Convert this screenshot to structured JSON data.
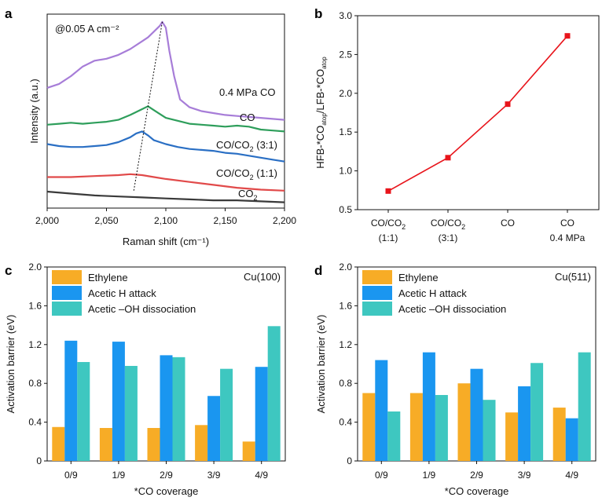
{
  "panel_letters": [
    "a",
    "b",
    "c",
    "d"
  ],
  "colors": {
    "ethylene": "#f7ac26",
    "acetic_h": "#1a96f0",
    "acetic_oh": "#3ec7c0",
    "line_b": "#e8141b",
    "purple": "#a77dd8",
    "green": "#2e9e5b",
    "blue": "#2a6fc4",
    "red": "#e14a4a",
    "dark": "#3a3a3a"
  },
  "chart_data": [
    {
      "id": "a",
      "type": "line",
      "annotation": "@0.05 A cm⁻²",
      "xlabel": "Raman shift (cm⁻¹)",
      "ylabel": "Intensity (a.u.)",
      "xlim": [
        2000,
        2200
      ],
      "xticks": [
        2000,
        2050,
        2100,
        2150,
        2200
      ],
      "xtick_labels": [
        "2,000",
        "2,050",
        "2,100",
        "2,150",
        "2,200"
      ],
      "ylim": [
        0,
        10
      ],
      "peak_guide": [
        [
          2073,
          0.9
        ],
        [
          2097,
          9.6
        ]
      ],
      "series": [
        {
          "name": "0.4 MPa CO",
          "label_parts": [
            "0.4 MPa CO"
          ],
          "color_key": "purple",
          "x": [
            2000,
            2010,
            2020,
            2030,
            2040,
            2050,
            2060,
            2070,
            2080,
            2085,
            2090,
            2095,
            2097,
            2100,
            2103,
            2107,
            2112,
            2120,
            2130,
            2140,
            2150,
            2160,
            2170,
            2180,
            2190,
            2200
          ],
          "y": [
            6.2,
            6.4,
            6.8,
            7.3,
            7.6,
            7.7,
            7.9,
            8.2,
            8.6,
            8.8,
            9.1,
            9.4,
            9.6,
            9.3,
            8.1,
            6.8,
            5.6,
            5.2,
            5.0,
            4.9,
            4.8,
            4.75,
            4.7,
            4.65,
            4.6,
            4.55
          ]
        },
        {
          "name": "CO",
          "label_parts": [
            "CO"
          ],
          "color_key": "green",
          "x": [
            2000,
            2010,
            2020,
            2030,
            2040,
            2050,
            2060,
            2070,
            2080,
            2085,
            2090,
            2095,
            2100,
            2110,
            2120,
            2130,
            2140,
            2150,
            2160,
            2170,
            2180,
            2190,
            2200
          ],
          "y": [
            4.3,
            4.35,
            4.4,
            4.35,
            4.4,
            4.45,
            4.55,
            4.8,
            5.1,
            5.25,
            5.05,
            4.85,
            4.65,
            4.5,
            4.35,
            4.3,
            4.25,
            4.2,
            4.25,
            4.2,
            4.05,
            4.0,
            3.95
          ]
        },
        {
          "name": "CO/CO₂ (3:1)",
          "label_parts": [
            "CO/CO",
            "2",
            " (3:1)"
          ],
          "color_key": "blue",
          "x": [
            2000,
            2010,
            2020,
            2030,
            2040,
            2050,
            2060,
            2070,
            2075,
            2080,
            2085,
            2090,
            2100,
            2110,
            2120,
            2130,
            2140,
            2150,
            2160,
            2170,
            2180,
            2190,
            2200
          ],
          "y": [
            3.3,
            3.2,
            3.15,
            3.15,
            3.2,
            3.25,
            3.4,
            3.65,
            3.85,
            3.95,
            3.75,
            3.5,
            3.3,
            3.15,
            3.05,
            3.0,
            2.95,
            2.85,
            2.8,
            2.7,
            2.6,
            2.5,
            2.4
          ]
        },
        {
          "name": "CO/CO₂ (1:1)",
          "label_parts": [
            "CO/CO",
            "2",
            " (1:1)"
          ],
          "color_key": "red",
          "x": [
            2000,
            2020,
            2040,
            2060,
            2070,
            2080,
            2090,
            2100,
            2120,
            2140,
            2160,
            2180,
            2200
          ],
          "y": [
            1.6,
            1.6,
            1.65,
            1.7,
            1.75,
            1.7,
            1.6,
            1.5,
            1.35,
            1.2,
            1.05,
            0.95,
            0.9
          ]
        },
        {
          "name": "CO₂",
          "label_parts": [
            "CO",
            "2",
            ""
          ],
          "color_key": "dark",
          "x": [
            2000,
            2020,
            2040,
            2060,
            2080,
            2100,
            2120,
            2140,
            2160,
            2180,
            2200
          ],
          "y": [
            0.85,
            0.75,
            0.65,
            0.6,
            0.55,
            0.5,
            0.45,
            0.4,
            0.4,
            0.35,
            0.3
          ]
        }
      ]
    },
    {
      "id": "b",
      "type": "line",
      "ylabel_parts": [
        "HFB-*CO",
        "atop",
        "/LFB-*CO",
        "atop"
      ],
      "ylabel": "HFB-*COatop/LFB-*COatop",
      "ylim": [
        0.5,
        3.0
      ],
      "yticks": [
        0.5,
        1.0,
        1.5,
        2.0,
        2.5,
        3.0
      ],
      "ytick_labels": [
        "0.5",
        "1.0",
        "1.5",
        "2.0",
        "2.5",
        "3.0"
      ],
      "categories": [
        "CO/CO2 (1:1)",
        "CO/CO2 (3:1)",
        "CO",
        "CO 0.4 MPa"
      ],
      "category_lines": [
        [
          {
            "t": "CO/CO",
            "sub": "2"
          },
          {
            "t": "(1:1)"
          }
        ],
        [
          {
            "t": "CO/CO",
            "sub": "2"
          },
          {
            "t": "(3:1)"
          }
        ],
        [
          {
            "t": "CO"
          }
        ],
        [
          {
            "t": "CO"
          },
          {
            "t": "0.4 MPa"
          }
        ]
      ],
      "values": [
        0.74,
        1.17,
        1.86,
        2.74
      ]
    },
    {
      "id": "c",
      "type": "bar",
      "title": "Cu(100)",
      "xlabel": "*CO coverage",
      "ylabel": "Activation barrier (eV)",
      "ylim": [
        0,
        2.0
      ],
      "yticks": [
        0,
        0.4,
        0.8,
        1.2,
        1.6,
        2.0
      ],
      "ytick_labels": [
        "0",
        "0.4",
        "0.8",
        "1.2",
        "1.6",
        "2.0"
      ],
      "categories": [
        "0/9",
        "1/9",
        "2/9",
        "3/9",
        "4/9"
      ],
      "series": [
        {
          "name": "Ethylene",
          "color_key": "ethylene",
          "values": [
            0.35,
            0.34,
            0.34,
            0.37,
            0.2
          ]
        },
        {
          "name": "Acetic H attack",
          "color_key": "acetic_h",
          "values": [
            1.24,
            1.23,
            1.09,
            0.67,
            0.97
          ]
        },
        {
          "name": "Acetic –OH dissociation",
          "color_key": "acetic_oh",
          "values": [
            1.02,
            0.98,
            1.07,
            0.95,
            1.39
          ]
        }
      ]
    },
    {
      "id": "d",
      "type": "bar",
      "title": "Cu(511)",
      "xlabel": "*CO coverage",
      "ylabel": "Activation barrier (eV)",
      "ylim": [
        0,
        2.0
      ],
      "yticks": [
        0,
        0.4,
        0.8,
        1.2,
        1.6,
        2.0
      ],
      "ytick_labels": [
        "0",
        "0.4",
        "0.8",
        "1.2",
        "1.6",
        "2.0"
      ],
      "categories": [
        "0/9",
        "1/9",
        "2/9",
        "3/9",
        "4/9"
      ],
      "series": [
        {
          "name": "Ethylene",
          "color_key": "ethylene",
          "values": [
            0.7,
            0.7,
            0.8,
            0.5,
            0.55
          ]
        },
        {
          "name": "Acetic H attack",
          "color_key": "acetic_h",
          "values": [
            1.04,
            1.12,
            0.95,
            0.77,
            0.44
          ]
        },
        {
          "name": "Acetic –OH dissociation",
          "color_key": "acetic_oh",
          "values": [
            0.51,
            0.68,
            0.63,
            1.01,
            1.12
          ]
        }
      ]
    }
  ]
}
